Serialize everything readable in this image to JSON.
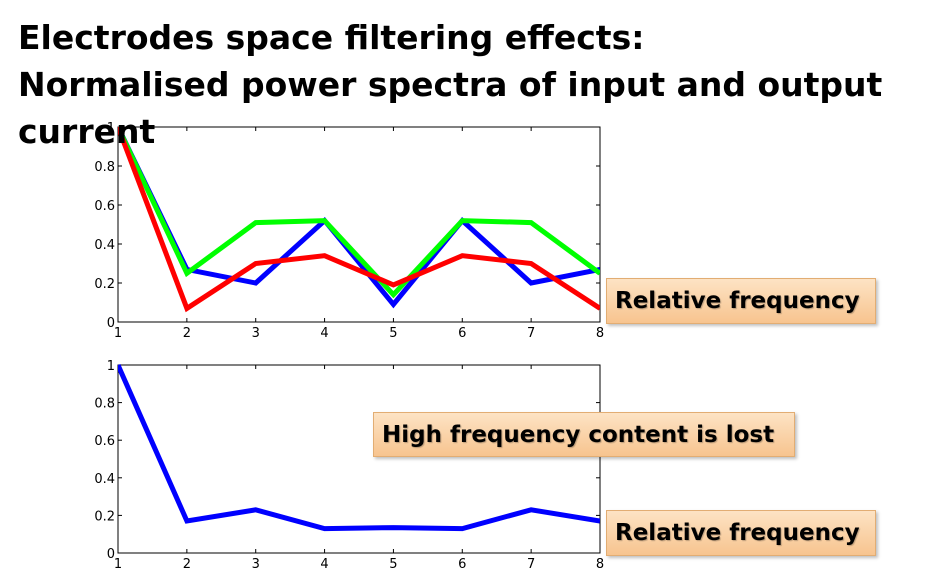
{
  "title": {
    "line1": "Electrodes space filtering effects:",
    "line2": "Normalised power spectra of input and output",
    "line3": "current"
  },
  "callouts": {
    "top_relative_frequency": "Relative frequency",
    "high_frequency_lost": "High frequency content is lost",
    "bottom_relative_frequency": "Relative frequency"
  },
  "chart_data": [
    {
      "type": "line",
      "x": [
        1,
        2,
        3,
        4,
        5,
        6,
        7,
        8
      ],
      "xlim": [
        1,
        8
      ],
      "ylim": [
        0,
        1
      ],
      "xticks": [
        "1",
        "2",
        "3",
        "4",
        "5",
        "6",
        "7",
        "8"
      ],
      "yticks": [
        "0",
        "0.2",
        "0.4",
        "0.6",
        "0.8",
        "1"
      ],
      "series": [
        {
          "color": "#0000ff",
          "values": [
            1.0,
            0.27,
            0.2,
            0.52,
            0.09,
            0.52,
            0.2,
            0.27
          ]
        },
        {
          "color": "#00ff00",
          "values": [
            1.0,
            0.25,
            0.51,
            0.52,
            0.14,
            0.52,
            0.51,
            0.25
          ]
        },
        {
          "color": "#ff0000",
          "values": [
            1.0,
            0.07,
            0.3,
            0.34,
            0.19,
            0.34,
            0.3,
            0.07
          ]
        }
      ]
    },
    {
      "type": "line",
      "x": [
        1,
        2,
        3,
        4,
        5,
        6,
        7,
        8
      ],
      "xlim": [
        1,
        8
      ],
      "ylim": [
        0,
        1
      ],
      "xticks": [
        "1",
        "2",
        "3",
        "4",
        "5",
        "6",
        "7",
        "8"
      ],
      "yticks": [
        "0",
        "0.2",
        "0.4",
        "0.6",
        "0.8",
        "1"
      ],
      "series": [
        {
          "color": "#0000ff",
          "values": [
            1.0,
            0.17,
            0.23,
            0.13,
            0.135,
            0.13,
            0.23,
            0.17
          ]
        }
      ]
    }
  ]
}
